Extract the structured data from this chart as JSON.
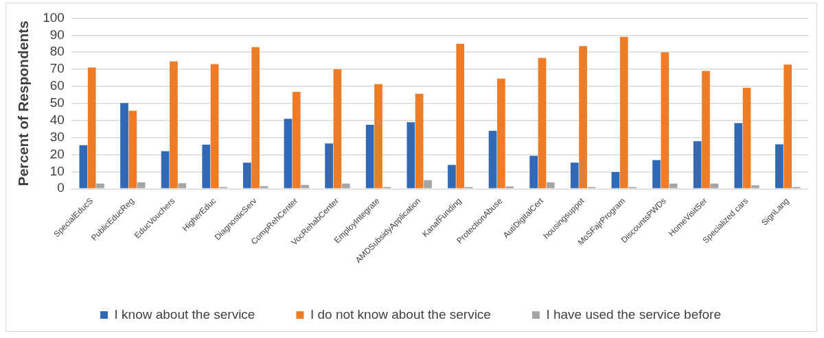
{
  "chart_data": {
    "type": "bar",
    "ylabel": "Percent of Respondents",
    "categories": [
      "SpecialEducS",
      "PublicEducReg",
      "EducVouchers",
      "HigherEduc",
      "DiagnosticServ",
      "CompRehCenter",
      "VocRehabCenter",
      "EmployIntegrate",
      "AMDSubsidyApplication",
      "KanafFunding",
      "ProtectionAbuse",
      "AutiDigitalCert",
      "housingsuppot",
      "MoSFajrProgram",
      "DiscountsPWDs",
      "HomeVisitSer",
      "Specialized cars",
      "SignLang"
    ],
    "series": [
      {
        "name": "I know about the service",
        "color": "#3269b5",
        "values": [
          25.5,
          50.2,
          22,
          25.8,
          15.3,
          41,
          26.5,
          37.5,
          39,
          14,
          34,
          19.3,
          15.3,
          9.8,
          16.8,
          27.8,
          38.5,
          26
        ]
      },
      {
        "name": "I do not know about the service",
        "color": "#ee7b25",
        "values": [
          71,
          45.7,
          74.6,
          73,
          83,
          56.8,
          70,
          61.3,
          55.7,
          85,
          64.5,
          76.7,
          83.6,
          89,
          80,
          69,
          59.2,
          72.7
        ]
      },
      {
        "name": "I have used the service before",
        "color": "#a5a5a5",
        "values": [
          3,
          3.7,
          3.2,
          1,
          1.5,
          2.2,
          3,
          1,
          5,
          1,
          1.3,
          3.7,
          1,
          1,
          3,
          3,
          2,
          1
        ]
      }
    ],
    "ylim": [
      0,
      100
    ],
    "yticks": [
      0,
      10,
      20,
      30,
      40,
      50,
      60,
      70,
      80,
      90,
      100
    ],
    "grid": "y",
    "legend": "bottom"
  }
}
